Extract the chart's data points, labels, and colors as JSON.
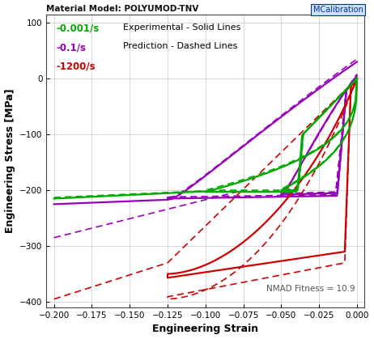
{
  "title": "Material Model: POLYUMOD-TNV",
  "xlabel": "Engineering Strain",
  "ylabel": "Engineering Stress [MPa]",
  "xlim": [
    -0.205,
    0.005
  ],
  "ylim": [
    -410,
    115
  ],
  "xticks": [
    -0.2,
    -0.175,
    -0.15,
    -0.125,
    -0.1,
    -0.075,
    -0.05,
    -0.025,
    0
  ],
  "yticks": [
    -400,
    -300,
    -200,
    -100,
    0,
    100
  ],
  "grid_color": "#c8c8c8",
  "bg_color": "#ffffff",
  "annotation": "NMAD Fitness = 10.9",
  "watermark": "MCalibration",
  "legend_items": [
    {
      "label": "-0.001/s",
      "color": "#00aa00"
    },
    {
      "label": "-0.1/s",
      "color": "#9900bb"
    },
    {
      "label": "-1200/s",
      "color": "#cc0000"
    }
  ],
  "legend_text1": "Experimental - Solid Lines",
  "legend_text2": "Prediction - Dashed Lines",
  "colors": {
    "green": "#00aa00",
    "purple": "#9900bb",
    "red": "#cc0000"
  }
}
